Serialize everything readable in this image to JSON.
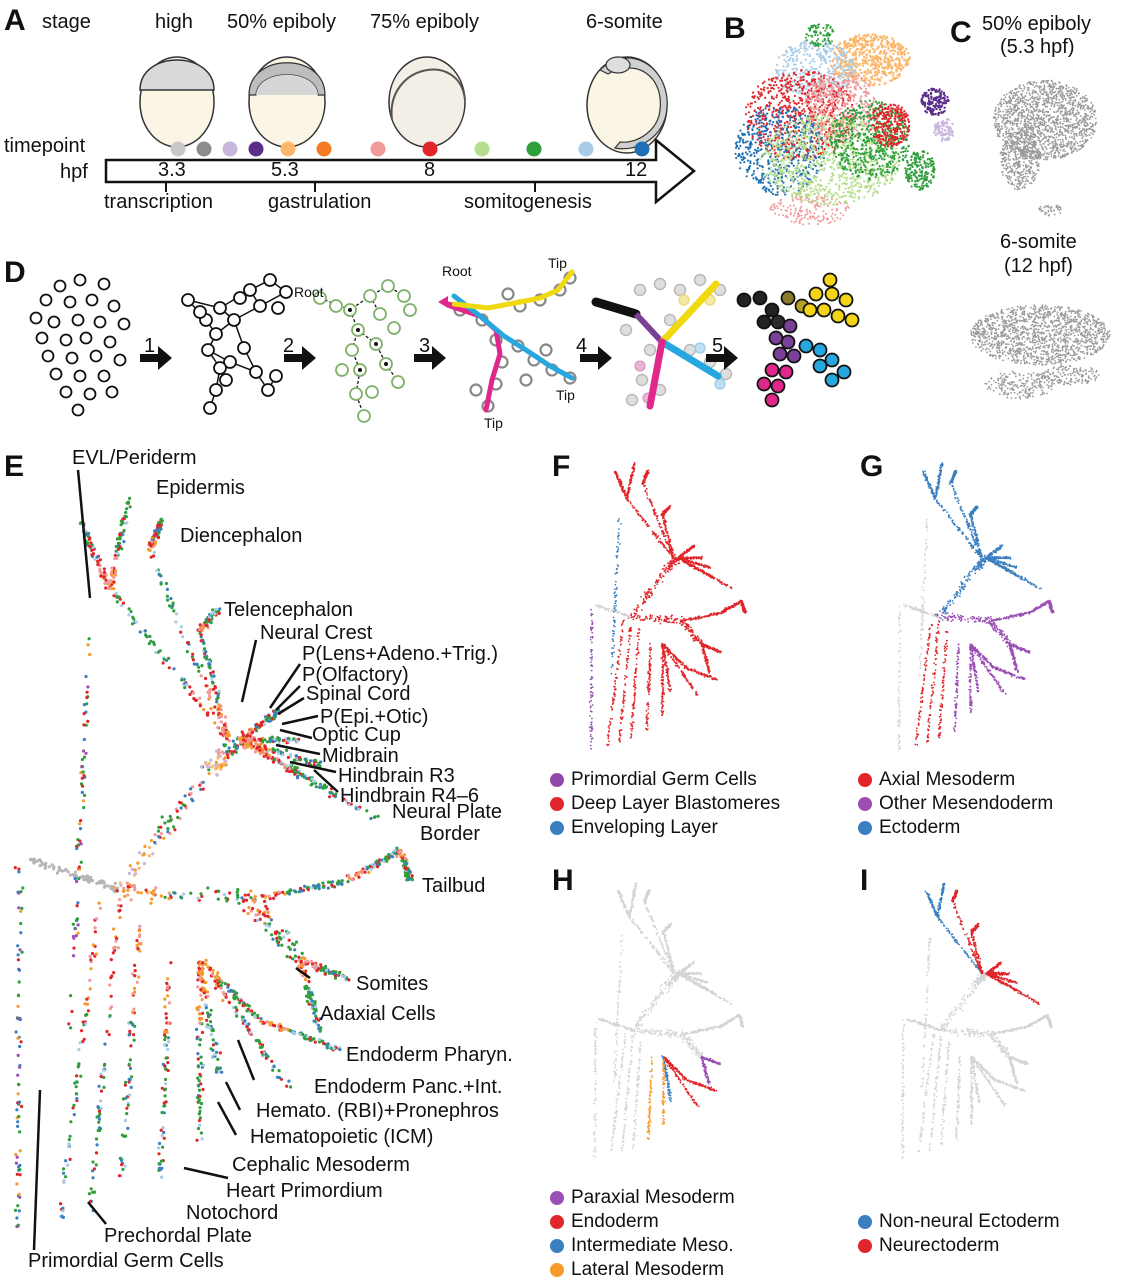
{
  "panels": {
    "A": "A",
    "B": "B",
    "C": "C",
    "D": "D",
    "E": "E",
    "F": "F",
    "G": "G",
    "H": "H",
    "I": "I"
  },
  "panelA": {
    "row_labels": {
      "stage": "stage",
      "timepoint": "timepoint",
      "hpf": "hpf"
    },
    "stages": [
      "high",
      "50% epiboly",
      "75% epiboly",
      "6-somite"
    ],
    "hpf_ticks": [
      "3.3",
      "5.3",
      "8",
      "12"
    ],
    "processes": [
      "transcription",
      "gastrulation",
      "somitogenesis"
    ],
    "timepoint_colors": [
      "#c9c9c9",
      "#8c8c8c",
      "#c8b6dc",
      "#5c2e8c",
      "#fbb86c",
      "#f47b20",
      "#f19a9a",
      "#e0262a",
      "#b6de8c",
      "#2f9f3c",
      "#a9cce6",
      "#1f6fb4"
    ]
  },
  "panelC": {
    "top": {
      "line1": "50% epiboly",
      "line2": "(5.3 hpf)"
    },
    "bottom": {
      "line1": "6-somite",
      "line2": "(12 hpf)"
    }
  },
  "panelD": {
    "steps": [
      "1",
      "2",
      "3",
      "4",
      "5"
    ],
    "annotations": {
      "root1": "Root",
      "root2": "Root",
      "tip1": "Tip",
      "tip2": "Tip",
      "tip3": "Tip"
    }
  },
  "panelE": {
    "labels": {
      "evl": "EVL/Periderm",
      "epidermis": "Epidermis",
      "diencephalon": "Diencephalon",
      "telencephalon": "Telencephalon",
      "neural_crest": "Neural Crest",
      "p_lens": "P(Lens+Adeno.+Trig.)",
      "p_olf": "P(Olfactory)",
      "spinal": "Spinal Cord",
      "p_epi": "P(Epi.+Otic)",
      "optic": "Optic Cup",
      "midbrain": "Midbrain",
      "hb_r3": "Hindbrain R3",
      "hb_r46": "Hindbrain R4–6",
      "npb1": "Neural Plate",
      "npb2": "Border",
      "tailbud": "Tailbud",
      "somites": "Somites",
      "adaxial": "Adaxial Cells",
      "endo_ph": "Endoderm Pharyn.",
      "endo_pi": "Endoderm Panc.+Int.",
      "hemato_rbi": "Hemato. (RBI)+Pronephros",
      "hemato_icm": "Hematopoietic (ICM)",
      "cephalic": "Cephalic Mesoderm",
      "heart": "Heart Primordium",
      "notochord": "Notochord",
      "prechordal": "Prechordal Plate",
      "pgc": "Primordial Germ Cells"
    }
  },
  "panelF": {
    "legend": [
      {
        "label": "Primordial Germ Cells",
        "color": "#8e4aa8"
      },
      {
        "label": "Deep Layer Blastomeres",
        "color": "#e0262a"
      },
      {
        "label": "Enveloping Layer",
        "color": "#3a7fc0"
      }
    ]
  },
  "panelG": {
    "legend": [
      {
        "label": "Axial Mesoderm",
        "color": "#e0262a"
      },
      {
        "label": "Other Mesendoderm",
        "color": "#9b4fb4"
      },
      {
        "label": "Ectoderm",
        "color": "#3a7fc0"
      }
    ]
  },
  "panelH": {
    "legend": [
      {
        "label": "Paraxial Mesoderm",
        "color": "#9b4fb4"
      },
      {
        "label": "Endoderm",
        "color": "#e0262a"
      },
      {
        "label": "Intermediate Meso.",
        "color": "#3a7fc0"
      },
      {
        "label": "Lateral Mesoderm",
        "color": "#f59a2b"
      }
    ]
  },
  "panelI": {
    "legend": [
      {
        "label": "Non-neural Ectoderm",
        "color": "#3a7fc0"
      },
      {
        "label": "Neurectoderm",
        "color": "#e0262a"
      }
    ]
  }
}
